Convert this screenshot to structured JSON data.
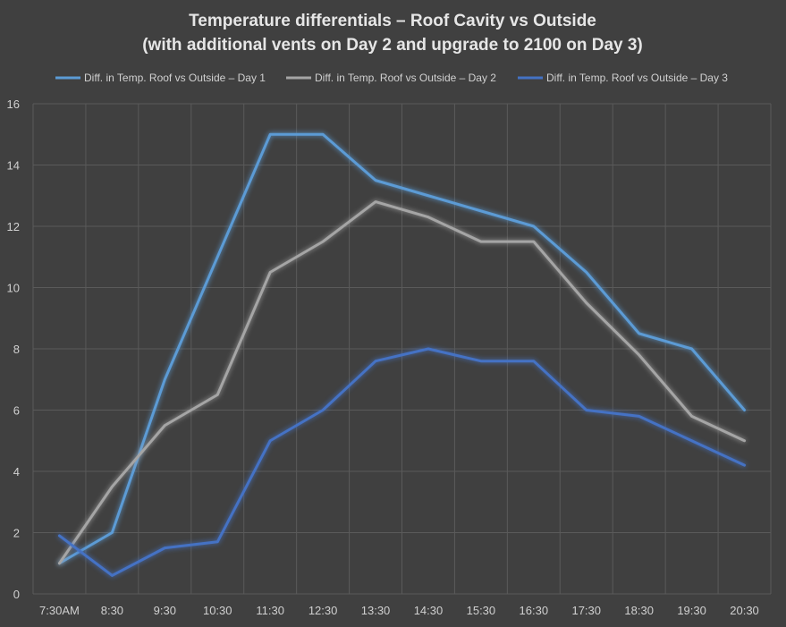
{
  "chart_data": {
    "type": "line",
    "title": "Temperature differentials – Roof Cavity vs Outside",
    "subtitle": "(with additional vents on Day 2 and upgrade to 2100 on Day 3)",
    "xlabel": "",
    "ylabel": "",
    "categories": [
      "7:30AM",
      "8:30",
      "9:30",
      "10:30",
      "11:30",
      "12:30",
      "13:30",
      "14:30",
      "15:30",
      "16:30",
      "17:30",
      "18:30",
      "19:30",
      "20:30"
    ],
    "ylim": [
      0,
      16
    ],
    "yticks": [
      0,
      2,
      4,
      6,
      8,
      10,
      12,
      14,
      16
    ],
    "grid": true,
    "legend_position": "top",
    "series": [
      {
        "name": "Diff. in Temp. Roof vs Outside – Day 1",
        "color": "#5b9bd5",
        "values": [
          1.0,
          2.0,
          7.0,
          11.0,
          15.0,
          15.0,
          13.5,
          13.0,
          12.5,
          12.0,
          10.5,
          8.5,
          8.0,
          6.0
        ]
      },
      {
        "name": "Diff. in Temp. Roof vs Outside – Day 2",
        "color": "#a5a5a5",
        "values": [
          1.0,
          3.5,
          5.5,
          6.5,
          10.5,
          11.5,
          12.8,
          12.3,
          11.5,
          11.5,
          9.5,
          7.8,
          5.8,
          5.0
        ]
      },
      {
        "name": "Diff. in Temp. Roof vs Outside – Day 3",
        "color": "#4472c4",
        "values": [
          1.9,
          0.6,
          1.5,
          1.7,
          5.0,
          6.0,
          7.6,
          8.0,
          7.6,
          7.6,
          6.0,
          5.8,
          5.0,
          4.2
        ]
      }
    ]
  }
}
